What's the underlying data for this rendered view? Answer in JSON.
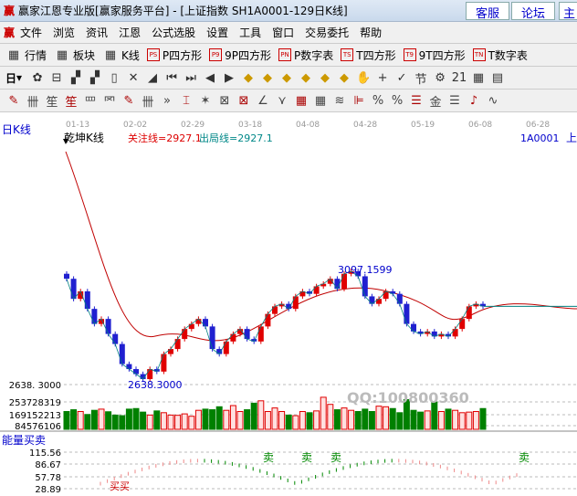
{
  "window": {
    "title": "赢家江恩专业版[赢家服务平台] - [上证指数  SH1A0001-129日K线]",
    "logo": "赢",
    "buttons": [
      "客服",
      "论坛",
      "主"
    ]
  },
  "menu": {
    "logo": "赢",
    "items": [
      "文件",
      "浏览",
      "资讯",
      "江恩",
      "公式选股",
      "设置",
      "工具",
      "窗口",
      "交易委托",
      "帮助"
    ]
  },
  "toolbar1": [
    {
      "icon": "PS",
      "label": "P四方形"
    },
    {
      "icon": "P9",
      "label": "9P四方形"
    },
    {
      "icon": "PN",
      "label": "P数字表"
    },
    {
      "icon": "TS",
      "label": "T四方形"
    },
    {
      "icon": "T9",
      "label": "9T四方形"
    },
    {
      "icon": "TN",
      "label": "T数字表"
    }
  ],
  "toolbar1_lead": [
    {
      "icon": "quote-table-icon",
      "label": "行情"
    },
    {
      "icon": "sector-icon",
      "label": "板块"
    },
    {
      "icon": "kline-icon",
      "label": "K线"
    }
  ],
  "toolbar2": {
    "period": "日",
    "glyphs": [
      "✿",
      "⊟",
      "▞",
      "▞",
      "▯",
      "✕",
      "◢",
      "⏮",
      "⏭",
      "◀",
      "▶",
      "◆",
      "◆",
      "◆",
      "◆",
      "◆",
      "◆",
      "✋",
      "+",
      "✓",
      "节",
      "⚙",
      "21",
      "▦",
      "▤"
    ]
  },
  "toolbar3": {
    "glyphs": [
      "✎",
      "卌",
      "笙",
      "笙",
      "罒",
      "罓",
      "✎",
      "卌",
      "»",
      "⌶",
      "✶",
      "⊠",
      "⊠",
      "∠",
      "⋎",
      "▦",
      "▦",
      "≋",
      "⊫",
      "%",
      "%",
      "☰",
      "金",
      "☰",
      "♪",
      "∿"
    ]
  },
  "chart": {
    "period_label": "日K线",
    "indicator": "乾坤K线",
    "focus_line": "关注线=2927.1",
    "exit_line": "出局线=2927.1",
    "code": "1A0001",
    "code_suffix": "上",
    "dates": [
      "01-13",
      "02-02",
      "02-29",
      "03-18",
      "04-08",
      "04-28",
      "05-19",
      "06-08",
      "06-28"
    ],
    "high_label": "3097.1599",
    "low_label": "2638.3000",
    "low_axis": "2638. 3000",
    "watermark": "QQ:100800360",
    "closes": [
      3060,
      2980,
      3010,
      2940,
      2880,
      2900,
      2840,
      2800,
      2720,
      2700,
      2680,
      2660,
      2700,
      2690,
      2760,
      2780,
      2820,
      2860,
      2880,
      2900,
      2870,
      2780,
      2760,
      2810,
      2840,
      2860,
      2820,
      2810,
      2870,
      2920,
      2950,
      2960,
      2940,
      2990,
      3010,
      3000,
      3030,
      3040,
      3060,
      3020,
      3080,
      3090,
      3070,
      2990,
      2960,
      2980,
      3010,
      3000,
      2960,
      2880,
      2850,
      2840,
      2850,
      2830,
      2840,
      2830,
      2860,
      2900,
      2950,
      2960,
      2950
    ],
    "volumes": [
      150,
      165,
      150,
      125,
      160,
      170,
      148,
      120,
      115,
      170,
      175,
      145,
      120,
      155,
      140,
      120,
      118,
      130,
      110,
      160,
      170,
      165,
      190,
      160,
      200,
      150,
      165,
      220,
      240,
      150,
      180,
      150,
      120,
      115,
      150,
      140,
      155,
      270,
      210,
      165,
      180,
      160,
      150,
      170,
      150,
      195,
      190,
      175,
      140,
      250,
      160,
      145,
      155,
      230,
      150,
      170,
      160,
      140,
      145,
      150,
      175
    ],
    "vol_axis": [
      "253728319",
      "169152213",
      "84576106"
    ],
    "energy_label": "能量买卖",
    "energy_axis": [
      "115.56",
      "86.67",
      "57.78",
      "28.89"
    ],
    "sell": "卖",
    "buy": "买买"
  },
  "colors": {
    "up": "#e00000",
    "down": "#2020d0",
    "vol_down": "#008000",
    "ma": "#c00000",
    "ma2": "#008080"
  }
}
